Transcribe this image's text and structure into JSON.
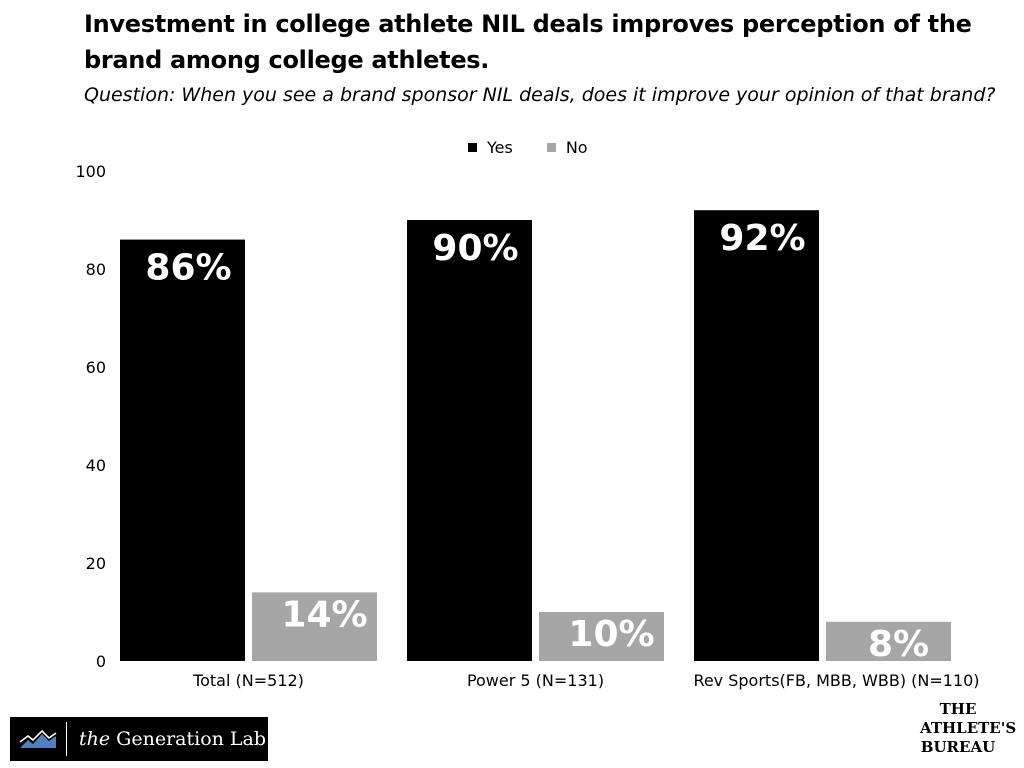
{
  "chart_data": {
    "type": "bar",
    "title": "Investment in college athlete NIL deals improves perception of the brand among college athletes.",
    "subtitle": "Question: When you see a brand sponsor NIL deals, does it improve your opinion of that brand?",
    "categories": [
      "Total (N=512)",
      "Power 5 (N=131)",
      "Rev Sports(FB, MBB, WBB) (N=110)"
    ],
    "series": [
      {
        "name": "Yes",
        "color": "#000000",
        "values": [
          86,
          90,
          92
        ],
        "labels": [
          "86%",
          "90%",
          "92%"
        ]
      },
      {
        "name": "No",
        "color": "#a6a6a6",
        "values": [
          14,
          10,
          8
        ],
        "labels": [
          "14%",
          "10%",
          "8%"
        ]
      }
    ],
    "ylim": [
      0,
      100
    ],
    "yticks": [
      0,
      20,
      40,
      60,
      80,
      100
    ],
    "legend_position": "top",
    "grid": false
  },
  "branding": {
    "left_logo": "the Generation Lab",
    "left_logo_the": "the",
    "left_logo_rest": "Generation Lab",
    "right_logo_lines": [
      "THE",
      "ATHLETE'S",
      "BUREAU"
    ]
  }
}
